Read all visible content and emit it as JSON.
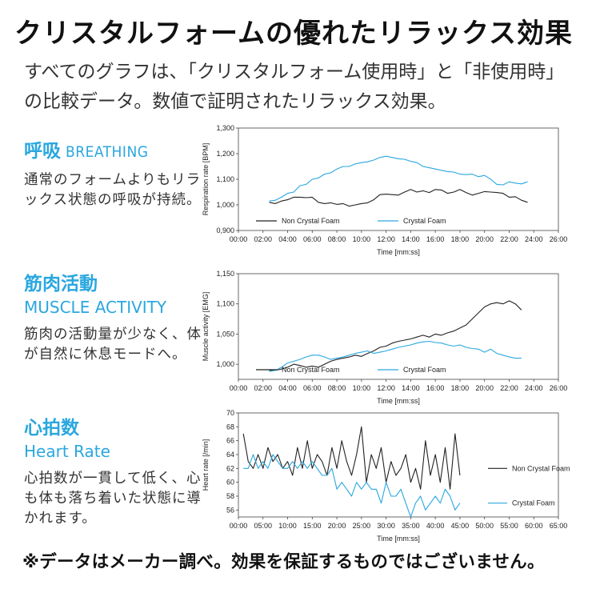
{
  "title": "クリスタルフォームの優れたリラックス効果",
  "intro": "すべてのグラフは、「クリスタルフォーム使用時」と「非使用時」の比較データ。数値で証明されたリラックス効果。",
  "sections": [
    {
      "heading": "呼吸",
      "heading_en": "BREATHING",
      "description": "通常のフォームよりもリラックス状態の呼吸が持続。"
    },
    {
      "heading": "筋肉活動",
      "heading_en": "MUSCLE ACTIVITY",
      "description": "筋肉の活動量が少なく、体が自然に休息モードへ。"
    },
    {
      "heading": "心拍数",
      "heading_en": "Heart Rate",
      "description": "心拍数が一貫して低く、心も体も落ち着いた状態に導かれます。"
    }
  ],
  "footer": "※データはメーカー調べ。効果を保証するものではございません。",
  "colors": {
    "accent": "#2aa7df",
    "non_crystal": "#222222",
    "crystal": "#2aa7df"
  },
  "chart_data": [
    {
      "type": "line",
      "ylabel": "Respiration rate [BPM]",
      "xlabel": "Time [mm:ss]",
      "x_ticks": [
        "00:00",
        "02:00",
        "04:00",
        "06:00",
        "08:00",
        "10:00",
        "12:00",
        "14:00",
        "16:00",
        "18:00",
        "20:00",
        "22:00",
        "24:00",
        "26:00"
      ],
      "y_ticks": [
        "0,900",
        "1,000",
        "1,100",
        "1,200",
        "1,300"
      ],
      "xlim": [
        0,
        26
      ],
      "ylim": [
        900,
        1300
      ],
      "legend_position": "inside-bottom",
      "series": [
        {
          "name": "Non Crystal Foam",
          "color": "#222222",
          "x": [
            2.5,
            3,
            3.5,
            4,
            4.5,
            5,
            5.5,
            6,
            6.5,
            7,
            7.5,
            8,
            8.5,
            9,
            9.5,
            10,
            10.5,
            11,
            11.5,
            12,
            12.5,
            13,
            13.5,
            14,
            14.5,
            15,
            15.5,
            16,
            16.5,
            17,
            17.5,
            18,
            18.5,
            19,
            19.5,
            20,
            20.5,
            21,
            21.5,
            22,
            22.5,
            23,
            23.5
          ],
          "y": [
            1010,
            1005,
            1015,
            1020,
            1030,
            1030,
            1028,
            1030,
            1010,
            1005,
            1008,
            1002,
            1005,
            995,
            1000,
            1005,
            1008,
            1020,
            1040,
            1042,
            1040,
            1038,
            1050,
            1060,
            1050,
            1055,
            1048,
            1060,
            1058,
            1045,
            1050,
            1060,
            1048,
            1038,
            1045,
            1052,
            1050,
            1048,
            1045,
            1030,
            1032,
            1018,
            1010
          ]
        },
        {
          "name": "Crystal Foam",
          "color": "#2aa7df",
          "x": [
            2.5,
            3,
            3.5,
            4,
            4.5,
            5,
            5.5,
            6,
            6.5,
            7,
            7.5,
            8,
            8.5,
            9,
            9.5,
            10,
            10.5,
            11,
            11.5,
            12,
            12.5,
            13,
            13.5,
            14,
            14.5,
            15,
            15.5,
            16,
            16.5,
            17,
            17.5,
            18,
            18.5,
            19,
            19.5,
            20,
            20.5,
            21,
            21.5,
            22,
            22.5,
            23,
            23.5
          ],
          "y": [
            1015,
            1018,
            1030,
            1045,
            1050,
            1075,
            1080,
            1100,
            1105,
            1120,
            1125,
            1140,
            1150,
            1150,
            1160,
            1165,
            1168,
            1175,
            1185,
            1190,
            1185,
            1180,
            1178,
            1170,
            1165,
            1150,
            1145,
            1140,
            1135,
            1130,
            1128,
            1120,
            1118,
            1120,
            1110,
            1115,
            1100,
            1080,
            1078,
            1090,
            1085,
            1082,
            1090
          ]
        }
      ]
    },
    {
      "type": "line",
      "ylabel": "Muscle activity [EMG]",
      "xlabel": "Time [mm:ss]",
      "x_ticks": [
        "00:00",
        "02:00",
        "04:00",
        "06:00",
        "08:00",
        "10:00",
        "12:00",
        "14:00",
        "16:00",
        "18:00",
        "20:00",
        "22:00",
        "24:00",
        "26:00"
      ],
      "y_ticks": [
        "1,000",
        "1,050",
        "1,100",
        "1,150"
      ],
      "xlim": [
        0,
        26
      ],
      "ylim": [
        975,
        1150
      ],
      "legend_position": "inside-bottom",
      "series": [
        {
          "name": "Non Crystal Foam",
          "color": "#222222",
          "x": [
            2.5,
            3,
            3.5,
            4,
            4.5,
            5,
            5.5,
            6,
            6.5,
            7,
            7.5,
            8,
            8.5,
            9,
            9.5,
            10,
            10.5,
            11,
            11.5,
            12,
            12.5,
            13,
            13.5,
            14,
            14.5,
            15,
            15.5,
            16,
            16.5,
            17,
            17.5,
            18,
            18.5,
            19,
            19.5,
            20,
            20.5,
            21,
            21.5,
            22,
            22.5,
            23
          ],
          "y": [
            990,
            990,
            992,
            995,
            1000,
            998,
            995,
            997,
            995,
            1000,
            1005,
            1008,
            1010,
            1012,
            1015,
            1013,
            1018,
            1022,
            1028,
            1030,
            1035,
            1038,
            1040,
            1042,
            1045,
            1048,
            1045,
            1050,
            1048,
            1052,
            1055,
            1060,
            1065,
            1075,
            1085,
            1095,
            1100,
            1102,
            1100,
            1105,
            1100,
            1090
          ]
        },
        {
          "name": "Crystal Foam",
          "color": "#2aa7df",
          "x": [
            2.5,
            3,
            3.5,
            4,
            4.5,
            5,
            5.5,
            6,
            6.5,
            7,
            7.5,
            8,
            8.5,
            9,
            9.5,
            10,
            10.5,
            11,
            11.5,
            12,
            12.5,
            13,
            13.5,
            14,
            14.5,
            15,
            15.5,
            16,
            16.5,
            17,
            17.5,
            18,
            18.5,
            19,
            19.5,
            20,
            20.5,
            21,
            21.5,
            22,
            22.5,
            23
          ],
          "y": [
            988,
            990,
            995,
            1002,
            1005,
            1008,
            1012,
            1015,
            1015,
            1012,
            1008,
            1010,
            1012,
            1015,
            1018,
            1020,
            1022,
            1018,
            1020,
            1022,
            1025,
            1028,
            1030,
            1032,
            1035,
            1037,
            1038,
            1036,
            1035,
            1032,
            1030,
            1032,
            1028,
            1026,
            1025,
            1020,
            1025,
            1018,
            1015,
            1012,
            1010,
            1010
          ]
        }
      ]
    },
    {
      "type": "line",
      "ylabel": "Heart rate [/min]",
      "xlabel": "Time [mm:ss]",
      "x_ticks": [
        "00:00",
        "05:00",
        "10:00",
        "15:00",
        "20:00",
        "25:00",
        "30:00",
        "35:00",
        "40:00",
        "45:00",
        "50:00",
        "55:00",
        "60:00",
        "65:00"
      ],
      "y_ticks": [
        "56",
        "58",
        "60",
        "62",
        "64",
        "66",
        "68",
        "70"
      ],
      "xlim": [
        0,
        65
      ],
      "ylim": [
        55,
        70
      ],
      "legend_position": "right",
      "series": [
        {
          "name": "Non Crystal Foam",
          "color": "#222222",
          "x": [
            1,
            2,
            3,
            4,
            5,
            6,
            7,
            8,
            9,
            10,
            11,
            12,
            13,
            14,
            15,
            16,
            17,
            18,
            19,
            20,
            21,
            22,
            23,
            24,
            25,
            26,
            27,
            28,
            29,
            30,
            31,
            32,
            33,
            34,
            35,
            36,
            37,
            38,
            39,
            40,
            41,
            42,
            43,
            44,
            45
          ],
          "y": [
            67,
            63,
            62,
            64,
            62,
            65,
            63,
            64,
            62,
            63,
            61,
            65,
            62,
            66,
            62,
            64,
            63,
            61,
            65,
            62,
            66,
            63,
            61,
            64,
            68,
            60,
            64,
            62,
            65,
            60,
            63,
            61,
            62,
            64,
            60,
            62,
            59,
            66,
            61,
            64,
            60,
            65,
            59,
            67,
            61
          ]
        },
        {
          "name": "Crystal Foam",
          "color": "#2aa7df",
          "x": [
            1,
            2,
            3,
            4,
            5,
            6,
            7,
            8,
            9,
            10,
            11,
            12,
            13,
            14,
            15,
            16,
            17,
            18,
            19,
            20,
            21,
            22,
            23,
            24,
            25,
            26,
            27,
            28,
            29,
            30,
            31,
            32,
            33,
            34,
            35,
            36,
            37,
            38,
            39,
            40,
            41,
            42,
            43,
            44,
            45
          ],
          "y": [
            62,
            62,
            64,
            62,
            63,
            62,
            64,
            63,
            62,
            62,
            63,
            62,
            63,
            62,
            63,
            62,
            61,
            61,
            62,
            59,
            60,
            59,
            58,
            60,
            59,
            60,
            59,
            59,
            57,
            60,
            58,
            58,
            59,
            57,
            55,
            57,
            58,
            56,
            57,
            58,
            57,
            59,
            58,
            56,
            57
          ]
        }
      ]
    }
  ]
}
